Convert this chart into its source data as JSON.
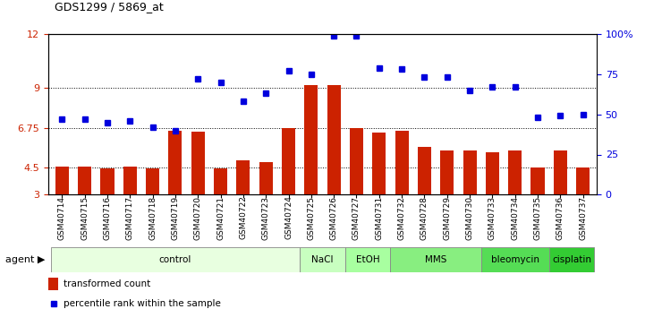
{
  "title": "GDS1299 / 5869_at",
  "samples": [
    "GSM40714",
    "GSM40715",
    "GSM40716",
    "GSM40717",
    "GSM40718",
    "GSM40719",
    "GSM40720",
    "GSM40721",
    "GSM40722",
    "GSM40723",
    "GSM40724",
    "GSM40725",
    "GSM40726",
    "GSM40727",
    "GSM40731",
    "GSM40732",
    "GSM40728",
    "GSM40729",
    "GSM40730",
    "GSM40733",
    "GSM40734",
    "GSM40735",
    "GSM40736",
    "GSM40737"
  ],
  "bar_values": [
    4.55,
    4.55,
    4.45,
    4.55,
    4.45,
    6.6,
    6.55,
    4.45,
    4.9,
    4.8,
    6.75,
    9.15,
    9.15,
    6.75,
    6.5,
    6.6,
    5.7,
    5.5,
    5.5,
    5.4,
    5.5,
    4.5,
    5.5,
    4.5
  ],
  "percentile_values_pct": [
    47,
    47,
    45,
    46,
    42,
    40,
    72,
    70,
    58,
    63,
    77,
    75,
    99,
    99,
    79,
    78,
    73,
    73,
    65,
    67,
    67,
    48,
    49,
    50
  ],
  "bar_color": "#cc2200",
  "percentile_color": "#0000dd",
  "ylim_left": [
    3,
    12
  ],
  "ylim_right": [
    0,
    100
  ],
  "yticks_left": [
    3,
    4.5,
    6.75,
    9,
    12
  ],
  "ytick_labels_left": [
    "3",
    "4.5",
    "6.75",
    "9",
    "12"
  ],
  "yticks_right_vals": [
    0,
    25,
    50,
    75,
    100
  ],
  "ytick_labels_right": [
    "0",
    "25",
    "50",
    "75",
    "100%"
  ],
  "hlines": [
    4.5,
    6.75,
    9
  ],
  "agent_groups": [
    {
      "label": "control",
      "start": 0,
      "end": 10
    },
    {
      "label": "NaCl",
      "start": 11,
      "end": 12
    },
    {
      "label": "EtOH",
      "start": 13,
      "end": 14
    },
    {
      "label": "MMS",
      "start": 15,
      "end": 18
    },
    {
      "label": "bleomycin",
      "start": 19,
      "end": 21
    },
    {
      "label": "cisplatin",
      "start": 22,
      "end": 23
    }
  ],
  "group_colors": [
    "#e8ffe0",
    "#c8ffc0",
    "#a8ffa0",
    "#88ee80",
    "#55dd55",
    "#33cc33"
  ],
  "legend_bar_label": "transformed count",
  "legend_pct_label": "percentile rank within the sample",
  "background_color": "#ffffff"
}
